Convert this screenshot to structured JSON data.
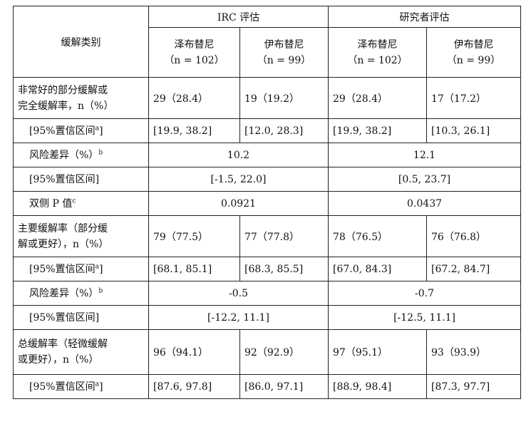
{
  "header": {
    "corner": "缓解类别",
    "group_irc": "IRC 评估",
    "group_inv": "研究者评估",
    "drug_a": "泽布替尼",
    "drug_b": "伊布替尼",
    "n_a": "（n = 102）",
    "n_b": "（n = 99）"
  },
  "rows": {
    "vgpr": {
      "label_line1": "非常好的部分缓解或",
      "label_line2": "完全缓解率，n（%）",
      "v1": "29（28.4）",
      "v2": "19（19.2）",
      "v3": "29（28.4）",
      "v4": "17（17.2）"
    },
    "vgpr_ci": {
      "label": "[95%置信区间",
      "sup": "a",
      "label_end": "]",
      "v1": "[19.9, 38.2]",
      "v2": "[12.0, 28.3]",
      "v3": "[19.9, 38.2]",
      "v4": "[10.3, 26.1]"
    },
    "vgpr_rd": {
      "label": "风险差异（%）",
      "sup": "b",
      "irc": "10.2",
      "inv": "12.1"
    },
    "vgpr_rd_ci": {
      "label": "[95%置信区间]",
      "irc": "[-1.5, 22.0]",
      "inv": "[0.5, 23.7]"
    },
    "pval": {
      "label": "双侧 P 值",
      "sup": "c",
      "irc": "0.0921",
      "inv": "0.0437"
    },
    "mrr": {
      "label_line1": "主要缓解率（部分缓",
      "label_line2": "解或更好），n（%）",
      "v1": "79（77.5）",
      "v2": "77（77.8）",
      "v3": "78（76.5）",
      "v4": "76（76.8）"
    },
    "mrr_ci": {
      "label": "[95%置信区间",
      "sup": "a",
      "label_end": "]",
      "v1": "[68.1, 85.1]",
      "v2": "[68.3, 85.5]",
      "v3": "[67.0, 84.3]",
      "v4": "[67.2, 84.7]"
    },
    "mrr_rd": {
      "label": "风险差异（%）",
      "sup": "b",
      "irc": "-0.5",
      "inv": "-0.7"
    },
    "mrr_rd_ci": {
      "label": "[95%置信区间]",
      "irc": "[-12.2, 11.1]",
      "inv": "[-12.5, 11.1]"
    },
    "orr": {
      "label_line1": "总缓解率（轻微缓解",
      "label_line2": "或更好），n（%）",
      "v1": "96（94.1）",
      "v2": "92（92.9）",
      "v3": "97（95.1）",
      "v4": "93（93.9）"
    },
    "orr_ci": {
      "label": "[95%置信区间",
      "sup": "a",
      "label_end": "]",
      "v1": "[87.6, 97.8]",
      "v2": "[86.0, 97.1]",
      "v3": "[88.9, 98.4]",
      "v4": "[87.3, 97.7]"
    }
  }
}
